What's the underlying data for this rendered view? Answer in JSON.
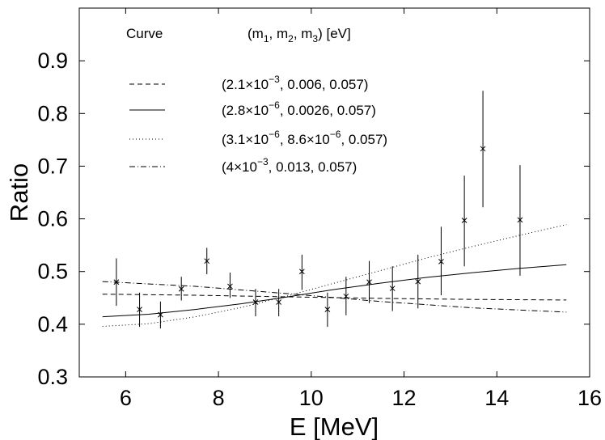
{
  "chart_data": {
    "type": "line",
    "xlabel": "E [MeV]",
    "ylabel": "Ratio",
    "xlim": [
      5,
      16
    ],
    "ylim": [
      0.3,
      1.0
    ],
    "xticks": [
      "6",
      "8",
      "10",
      "12",
      "14",
      "16"
    ],
    "yticks": [
      "0.3",
      "0.4",
      "0.5",
      "0.6",
      "0.7",
      "0.8",
      "0.9"
    ],
    "grid": false,
    "legend": {
      "placement": "top-left",
      "header_curve": "Curve",
      "header_params": "(m1, m2, m3) [eV]",
      "entries": [
        {
          "style": "dashed",
          "label": "(2.1×10−3, 0.006, 0.057)"
        },
        {
          "style": "solid",
          "label": "(2.8×10−6, 0.0026, 0.057)"
        },
        {
          "style": "dotted",
          "label": "(3.1×10−6, 8.6×10−6, 0.057)"
        },
        {
          "style": "dashdot",
          "label": "(4×10−3, 0.013, 0.057)"
        }
      ]
    },
    "series": [
      {
        "style": "dashed",
        "x": [
          5.5,
          7.5,
          9.5,
          11.5,
          13.5,
          15.5
        ],
        "y": [
          0.457,
          0.455,
          0.452,
          0.449,
          0.447,
          0.446
        ]
      },
      {
        "style": "solid",
        "x": [
          5.5,
          6.5,
          7.5,
          8.5,
          9.5,
          10.5,
          11.5,
          12.5,
          13.5,
          14.5,
          15.5
        ],
        "y": [
          0.414,
          0.419,
          0.428,
          0.439,
          0.452,
          0.466,
          0.478,
          0.489,
          0.498,
          0.506,
          0.513
        ]
      },
      {
        "style": "dotted",
        "x": [
          5.5,
          6.5,
          7.5,
          8.5,
          9.5,
          10.5,
          11.5,
          12.5,
          13.5,
          14.5,
          15.5
        ],
        "y": [
          0.396,
          0.401,
          0.414,
          0.432,
          0.454,
          0.478,
          0.502,
          0.526,
          0.548,
          0.569,
          0.589
        ]
      },
      {
        "style": "dashdot",
        "x": [
          5.5,
          7.5,
          9.5,
          11.5,
          13.5,
          15.5
        ],
        "y": [
          0.481,
          0.472,
          0.458,
          0.443,
          0.431,
          0.423
        ]
      }
    ],
    "points": [
      {
        "x": 5.8,
        "y": 0.48,
        "lo": 0.435,
        "hi": 0.525
      },
      {
        "x": 6.3,
        "y": 0.428,
        "lo": 0.395,
        "hi": 0.46
      },
      {
        "x": 6.75,
        "y": 0.418,
        "lo": 0.392,
        "hi": 0.443
      },
      {
        "x": 7.2,
        "y": 0.467,
        "lo": 0.445,
        "hi": 0.49
      },
      {
        "x": 7.75,
        "y": 0.52,
        "lo": 0.495,
        "hi": 0.545
      },
      {
        "x": 8.25,
        "y": 0.472,
        "lo": 0.45,
        "hi": 0.498
      },
      {
        "x": 8.8,
        "y": 0.442,
        "lo": 0.415,
        "hi": 0.467
      },
      {
        "x": 9.3,
        "y": 0.442,
        "lo": 0.415,
        "hi": 0.467
      },
      {
        "x": 9.8,
        "y": 0.5,
        "lo": 0.465,
        "hi": 0.532
      },
      {
        "x": 10.35,
        "y": 0.428,
        "lo": 0.395,
        "hi": 0.46
      },
      {
        "x": 10.75,
        "y": 0.453,
        "lo": 0.417,
        "hi": 0.49
      },
      {
        "x": 11.25,
        "y": 0.48,
        "lo": 0.44,
        "hi": 0.52
      },
      {
        "x": 11.75,
        "y": 0.468,
        "lo": 0.425,
        "hi": 0.51
      },
      {
        "x": 12.3,
        "y": 0.481,
        "lo": 0.43,
        "hi": 0.532
      },
      {
        "x": 12.8,
        "y": 0.519,
        "lo": 0.455,
        "hi": 0.585
      },
      {
        "x": 13.3,
        "y": 0.597,
        "lo": 0.51,
        "hi": 0.682
      },
      {
        "x": 13.7,
        "y": 0.733,
        "lo": 0.622,
        "hi": 0.843
      },
      {
        "x": 14.5,
        "y": 0.598,
        "lo": 0.492,
        "hi": 0.702
      }
    ]
  }
}
